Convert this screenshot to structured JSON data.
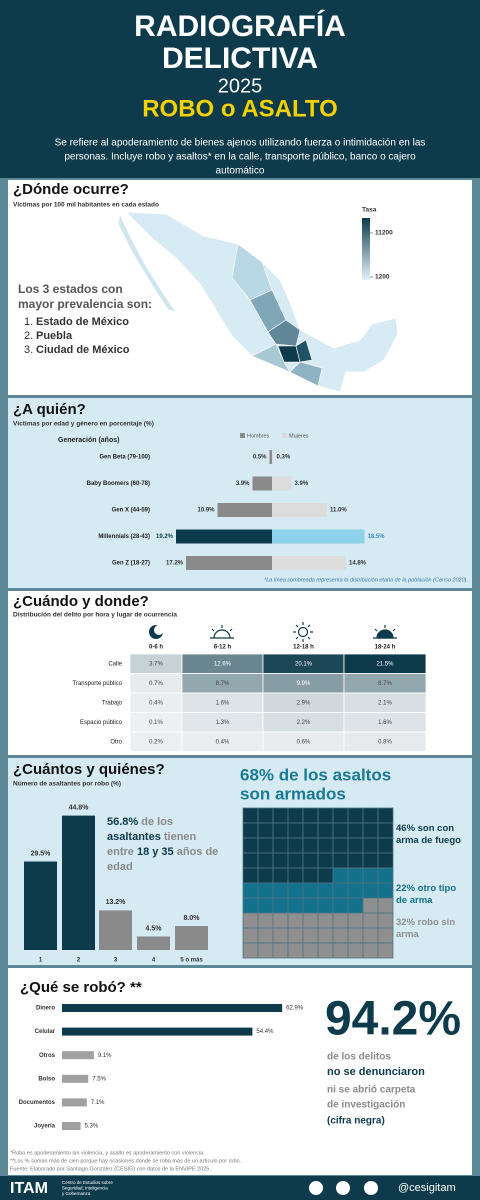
{
  "header": {
    "title_lines": [
      "RADIOGRAFÍA",
      "DELICTIVA"
    ],
    "year": "2025",
    "topic": "ROBO o ASALTO",
    "description_lines": [
      "Se refiere al apoderamiento de bienes ajenos utilizando fuerza o intimidación en las",
      "personas. Incluye robo y asaltos* en la calle, transporte público, banco o cajero",
      "automático"
    ]
  },
  "chart_data": [
    {
      "type": "choropleth",
      "title": "¿Dónde ocurre?",
      "subtitle": "Víctimas por 100 mil habitantes en cada estado",
      "legend_title": "Tasa",
      "colorbar_ticks": [
        11200,
        1200
      ],
      "colors": [
        "#0d3b4c",
        "#e4f2f9"
      ],
      "callout_lines": [
        "Los 3 estados con",
        "mayor prevalencia son:"
      ],
      "top_states": [
        {
          "rank": "1.",
          "name": "Estado de México"
        },
        {
          "rank": "2.",
          "name": "Puebla"
        },
        {
          "rank": "3.",
          "name": "Ciudad de México"
        }
      ]
    },
    {
      "type": "butterfly",
      "title": "¿A quién?",
      "subtitle": "Víctimas por edad y género en porcentaje (%)",
      "category_label": "Generación (años)",
      "categories": [
        "Gen Beta (79-100)",
        "Baby Boomers (60-78)",
        "Gen X (44-59)",
        "Millennials (28-43)",
        "Gen Z (18-27)"
      ],
      "series": [
        {
          "name": "Hombres",
          "color": "#8a8a8a",
          "values": [
            0.5,
            3.9,
            10.9,
            19.2,
            17.2
          ],
          "value_labels": [
            "0.5%",
            "3.9%",
            "10.9%",
            "19.2%",
            "17.2%"
          ],
          "colors": [
            "#8a8a8a",
            "#8a8a8a",
            "#8a8a8a",
            "#0d3b4c",
            "#8a8a8a"
          ],
          "label_colors": [
            "#333333",
            "#333333",
            "#333333",
            "#0d3b4c",
            "#333333"
          ]
        },
        {
          "name": "Mujeres",
          "color": "#dcdcdc",
          "values": [
            0.3,
            3.9,
            11.0,
            18.5,
            14.8
          ],
          "value_labels": [
            "0.3%",
            "3.9%",
            "11.0%",
            "18.5%",
            "14.8%"
          ],
          "colors": [
            "#dcdcdc",
            "#dcdcdc",
            "#dcdcdc",
            "#8fd0ea",
            "#dcdcdc"
          ],
          "label_colors": [
            "#333333",
            "#333333",
            "#333333",
            "#3a8fc0",
            "#333333"
          ]
        }
      ],
      "note": "*La línea sombreada representa la distribución etaria de la población (Censo 2020)."
    },
    {
      "type": "heatmap",
      "title": "¿Cuándo y donde?",
      "subtitle": "Distribución del delito por hora y lugar de ocurrencia",
      "columns": [
        "0-6 h",
        "6-12 h",
        "12-18 h",
        "18-24 h"
      ],
      "categories": [
        "Calle",
        "Transporte público",
        "Trabajo",
        "Espacio público",
        "Otro"
      ],
      "values": [
        [
          3.7,
          12.6,
          20.1,
          21.5
        ],
        [
          0.7,
          8.7,
          9.9,
          8.7
        ],
        [
          0.4,
          1.6,
          2.9,
          2.1
        ],
        [
          0.1,
          1.3,
          2.2,
          1.6
        ],
        [
          0.2,
          0.4,
          0.6,
          0.8
        ]
      ],
      "value_labels": [
        [
          "3.7%",
          "12.6%",
          "20.1%",
          "21.5%"
        ],
        [
          "0.7%",
          "8.7%",
          "9.9%",
          "8.7%"
        ],
        [
          "0.4%",
          "1.6%",
          "2.9%",
          "2.1%"
        ],
        [
          "0.1%",
          "1.3%",
          "2.2%",
          "1.6%"
        ],
        [
          "0.2%",
          "0.4%",
          "0.6%",
          "0.8%"
        ]
      ],
      "colors": [
        "#eef1f3",
        "#0d3b4c"
      ]
    },
    {
      "type": "bar",
      "title": "¿Cuántos y quiénes?",
      "subtitle": "Número de asaltantes por robo (%)",
      "categories": [
        "1",
        "2",
        "3",
        "4",
        "5 o más"
      ],
      "values": [
        29.5,
        44.8,
        13.2,
        4.5,
        8.0
      ],
      "value_labels": [
        "29.5%",
        "44.8%",
        "13.2%",
        "4.5%",
        "8.0%"
      ],
      "colors": [
        "#0d3b4c",
        "#0d3b4c",
        "#8a8a8a",
        "#8a8a8a",
        "#8a8a8a"
      ],
      "annotation_lines": [
        [
          {
            "text": "56.8%",
            "color": "#0d3b4c"
          },
          {
            "text": " de los",
            "color": "#8a8a8a"
          }
        ],
        [
          {
            "text": "asaltantes",
            "color": "#0d3b4c"
          },
          {
            "text": " tienen",
            "color": "#8a8a8a"
          }
        ],
        [
          {
            "text": "entre ",
            "color": "#8a8a8a"
          },
          {
            "text": "18 y 35",
            "color": "#0d3b4c"
          },
          {
            "text": " años de",
            "color": "#8a8a8a"
          }
        ],
        [
          {
            "text": "edad",
            "color": "#8a8a8a"
          }
        ]
      ]
    },
    {
      "type": "waffle",
      "title_lines": [
        "68% de los asaltos",
        "son armados"
      ],
      "categories": [
        "46% son con arma de fuego",
        "22% otro tipo de arma",
        "32% robo sin arma"
      ],
      "values": [
        46,
        22,
        32
      ],
      "colors": [
        "#0d3b4c",
        "#13718c",
        "#8f8f8f"
      ]
    },
    {
      "type": "hbar",
      "title": "¿Qué se robó? **",
      "categories": [
        "Dinero",
        "Celular",
        "Otros",
        "Bolso",
        "Documentos",
        "Joyería"
      ],
      "values": [
        62.9,
        54.4,
        9.1,
        7.5,
        7.1,
        5.3
      ],
      "value_labels": [
        "62.9%",
        "54.4%",
        "9.1%",
        "7.5%",
        "7.1%",
        "5.3%"
      ],
      "colors": [
        "#0d3b4c",
        "#0d3b4c",
        "#a0a0a0",
        "#a0a0a0",
        "#a0a0a0",
        "#a0a0a0"
      ]
    }
  ],
  "unreported": {
    "figure": "94.2%",
    "lines": [
      {
        "text": "de los delitos",
        "color": "#8a8a8a"
      },
      {
        "text": "no se denunciaron",
        "color": "#0d3b4c"
      },
      {
        "text": "ni se abrió carpeta",
        "color": "#8a8a8a"
      },
      {
        "text": "de investigación",
        "color": "#8a8a8a"
      },
      {
        "text": "(cifra negra)",
        "color": "#0d3b4c"
      }
    ]
  },
  "footnotes": [
    "*Robo es apoderamiento sin violencia, y asalto es apoderamiento con violencia.",
    "**Los % suman más de cien porque hay ocasiones donde se roba más de un artículo por robo.",
    "Fuente: Elaborado por Santiago González (CESIG) con datos de la ENVIPE 2025."
  ],
  "footer": {
    "logo": "ITAM",
    "center_lines": [
      "Centro de Estudios sobre",
      "Seguridad, Inteligencia",
      "y Gobernanza"
    ],
    "handle": "@cesigitam"
  }
}
